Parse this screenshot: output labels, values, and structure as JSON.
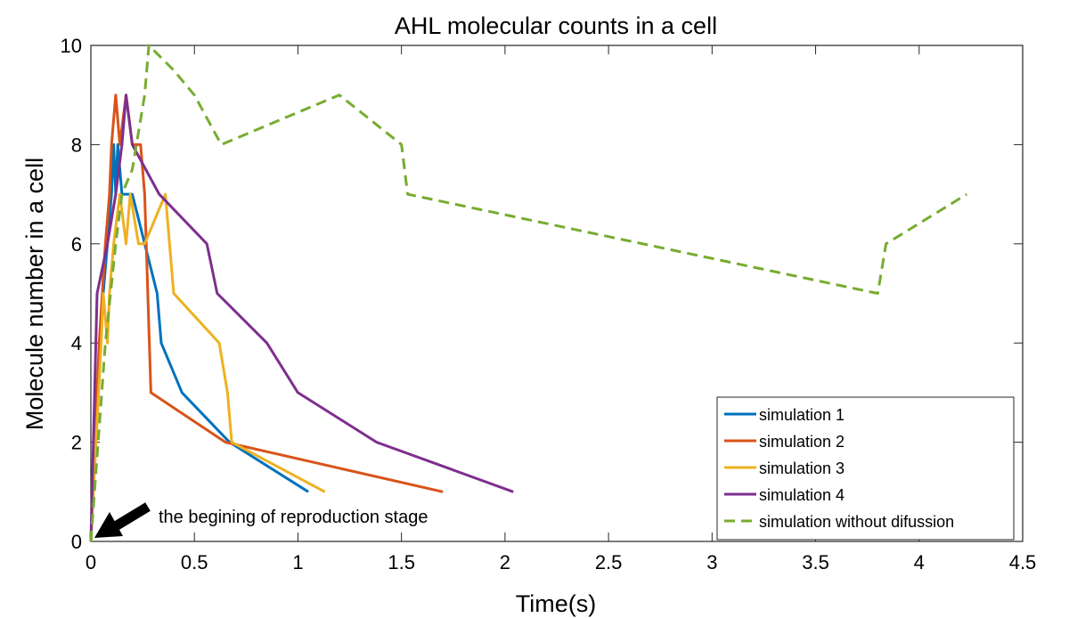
{
  "chart_data": {
    "type": "line",
    "title": "AHL molecular counts in a cell",
    "xlabel": "Time(s)",
    "ylabel": "Molecule number in a cell",
    "xlim": [
      0,
      4.5
    ],
    "ylim": [
      0,
      10
    ],
    "xticks": [
      "0",
      "0.5",
      "1",
      "1.5",
      "2",
      "2.5",
      "3",
      "3.5",
      "4",
      "4.5"
    ],
    "yticks": [
      "0",
      "2",
      "4",
      "6",
      "8",
      "10"
    ],
    "grid": false,
    "legend_position": "bottom-right",
    "series": [
      {
        "name": "simulation 1",
        "color": "#0072BD",
        "style": "solid",
        "points": [
          [
            0,
            0
          ],
          [
            0.03,
            3
          ],
          [
            0.06,
            5
          ],
          [
            0.08,
            6
          ],
          [
            0.1,
            7
          ],
          [
            0.11,
            8
          ],
          [
            0.12,
            7
          ],
          [
            0.13,
            8
          ],
          [
            0.15,
            7
          ],
          [
            0.2,
            7
          ],
          [
            0.32,
            5
          ],
          [
            0.34,
            4
          ],
          [
            0.44,
            3
          ],
          [
            0.67,
            2
          ],
          [
            1.05,
            1
          ]
        ]
      },
      {
        "name": "simulation 2",
        "color": "#D95319",
        "style": "solid",
        "points": [
          [
            0,
            0
          ],
          [
            0.04,
            4
          ],
          [
            0.07,
            6
          ],
          [
            0.09,
            7
          ],
          [
            0.1,
            8
          ],
          [
            0.12,
            9
          ],
          [
            0.14,
            8
          ],
          [
            0.17,
            9
          ],
          [
            0.2,
            8
          ],
          [
            0.24,
            8
          ],
          [
            0.26,
            7
          ],
          [
            0.29,
            3
          ],
          [
            0.65,
            2
          ],
          [
            1.7,
            1
          ]
        ]
      },
      {
        "name": "simulation 3",
        "color": "#EDB120",
        "style": "solid",
        "points": [
          [
            0,
            0
          ],
          [
            0.05,
            4
          ],
          [
            0.06,
            5
          ],
          [
            0.08,
            4
          ],
          [
            0.09,
            5
          ],
          [
            0.11,
            6
          ],
          [
            0.14,
            7
          ],
          [
            0.17,
            6
          ],
          [
            0.19,
            7
          ],
          [
            0.23,
            6
          ],
          [
            0.26,
            6
          ],
          [
            0.36,
            7
          ],
          [
            0.38,
            6
          ],
          [
            0.4,
            5
          ],
          [
            0.62,
            4
          ],
          [
            0.66,
            3
          ],
          [
            0.68,
            2
          ],
          [
            1.13,
            1
          ]
        ]
      },
      {
        "name": "simulation 4",
        "color": "#7E2F8E",
        "style": "solid",
        "points": [
          [
            0,
            0
          ],
          [
            0.03,
            5
          ],
          [
            0.08,
            6
          ],
          [
            0.12,
            7
          ],
          [
            0.15,
            8
          ],
          [
            0.17,
            9
          ],
          [
            0.2,
            8
          ],
          [
            0.33,
            7
          ],
          [
            0.56,
            6
          ],
          [
            0.61,
            5
          ],
          [
            0.85,
            4
          ],
          [
            1.0,
            3
          ],
          [
            1.38,
            2
          ],
          [
            2.04,
            1
          ]
        ]
      },
      {
        "name": "simulation without difussion",
        "color": "#77AC30",
        "style": "dashed",
        "points": [
          [
            0,
            0
          ],
          [
            0.07,
            4
          ],
          [
            0.12,
            6
          ],
          [
            0.15,
            7
          ],
          [
            0.2,
            7.5
          ],
          [
            0.26,
            9
          ],
          [
            0.28,
            10
          ],
          [
            0.4,
            9.5
          ],
          [
            0.5,
            9
          ],
          [
            0.63,
            8
          ],
          [
            1.2,
            9
          ],
          [
            1.5,
            8
          ],
          [
            1.53,
            7
          ],
          [
            3.8,
            5
          ],
          [
            3.84,
            6
          ],
          [
            4.23,
            7
          ]
        ]
      }
    ],
    "annotation": {
      "text": "the begining of reproduction stage",
      "points_to": [
        0,
        0
      ]
    }
  }
}
